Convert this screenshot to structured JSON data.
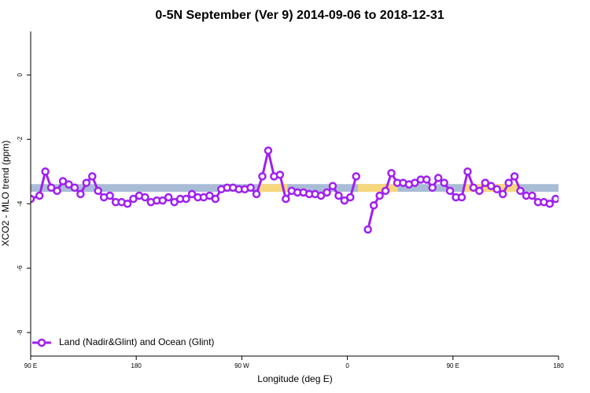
{
  "chart_data": {
    "type": "line",
    "title": "0-5N September (Ver 9)   2014-09-06 to 2018-12-31",
    "xlabel": "Longitude (deg E)",
    "ylabel": "XCO2 - MLO trend (ppm)",
    "xlim": [
      90,
      540
    ],
    "ylim": [
      -8.73,
      1.35
    ],
    "xticks": [
      {
        "value": 90,
        "label": "90 E"
      },
      180,
      {
        "value": 270,
        "label": "90 W"
      },
      {
        "value": 360,
        "label": "0"
      },
      {
        "value": 450,
        "label": "90 E"
      },
      {
        "value": 540,
        "label": "180"
      }
    ],
    "yticks": [
      0,
      -2,
      -4,
      -6,
      -8
    ],
    "x": [
      90,
      97.5,
      102.5,
      107.5,
      112.5,
      117.5,
      122.5,
      127.5,
      132.5,
      137.5,
      142.5,
      147.5,
      152.5,
      157.5,
      162.5,
      167.5,
      172.5,
      177.5,
      182.5,
      187.5,
      192.5,
      197.5,
      202.5,
      207.5,
      212.5,
      217.5,
      222.5,
      227.5,
      232.5,
      237.5,
      242.5,
      247.5,
      252.5,
      257.5,
      262.5,
      267.5,
      272.5,
      277.5,
      282.5,
      287.5,
      292.5,
      297.5,
      302.5,
      307.5,
      312.5,
      317.5,
      322.5,
      327.5,
      332.5,
      337.5,
      342.5,
      347.5,
      352.5,
      357.5,
      362.5,
      367.5,
      372.5,
      377.5,
      382.5,
      387.5,
      392.5,
      397.5,
      402.5,
      407.5,
      412.5,
      417.5,
      422.5,
      427.5,
      432.5,
      437.5,
      442.5,
      447.5,
      452.5,
      457.5,
      462.5,
      467.5,
      472.5,
      477.5,
      482.5,
      487.5,
      492.5,
      497.5,
      502.5,
      507.5,
      512.5,
      517.5,
      522.5,
      527.5,
      532.5,
      537.5
    ],
    "series": [
      {
        "name": "Land (Nadir&Glint) and Ocean (Glint)",
        "color": "#a020f0",
        "values": [
          -3.85,
          -3.75,
          -3.0,
          -3.5,
          -3.6,
          -3.3,
          -3.4,
          -3.5,
          -3.7,
          -3.35,
          -3.15,
          -3.6,
          -3.8,
          -3.75,
          -3.95,
          -3.95,
          -4.0,
          -3.85,
          -3.75,
          -3.8,
          -3.95,
          -3.9,
          -3.9,
          -3.8,
          -3.95,
          -3.85,
          -3.85,
          -3.7,
          -3.8,
          -3.8,
          -3.75,
          -3.85,
          -3.55,
          -3.5,
          -3.5,
          -3.55,
          -3.55,
          -3.5,
          -3.7,
          -3.15,
          -2.35,
          -3.15,
          -3.1,
          -3.85,
          -3.6,
          -3.65,
          -3.65,
          -3.7,
          -3.7,
          -3.75,
          -3.65,
          -3.45,
          -3.75,
          -3.9,
          -3.8,
          -3.15,
          null,
          -4.8,
          -4.05,
          -3.75,
          -3.6,
          -3.05,
          -3.35,
          -3.35,
          -3.4,
          -3.35,
          -3.25,
          -3.25,
          -3.5,
          -3.2,
          -3.35,
          -3.6,
          -3.8,
          -3.8,
          -3.0,
          -3.5,
          -3.6,
          -3.35,
          -3.45,
          -3.55,
          -3.7,
          -3.35,
          -3.15,
          -3.6,
          -3.75,
          -3.75,
          -3.95,
          -3.95,
          -4.0,
          -3.85
        ]
      }
    ],
    "band": {
      "range": [
        -3.63,
        -3.39
      ],
      "color": "#a9bcd6"
    },
    "highlights": {
      "color": "#f7d77c",
      "ranges": [
        [
          285,
          309
        ],
        [
          369,
          403
        ],
        [
          460,
          505
        ]
      ]
    },
    "legend": "bottom-left"
  }
}
